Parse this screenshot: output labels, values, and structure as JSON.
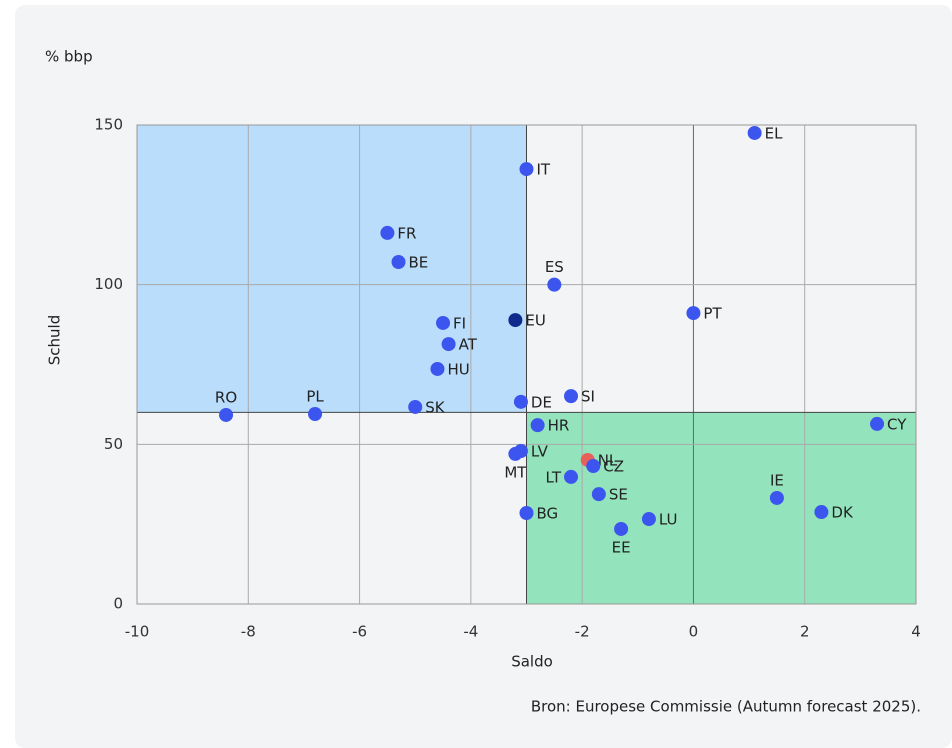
{
  "chart_data": {
    "type": "scatter",
    "title": "% bbp",
    "xlabel": "Saldo",
    "ylabel": "Schuld",
    "source": "Bron: Europese Commissie (Autumn forecast 2025).",
    "labels": [
      "EL",
      "IT",
      "FR",
      "BE",
      "ES",
      "PT",
      "EU",
      "FI",
      "AT",
      "HU",
      "SI",
      "DE",
      "SK",
      "RO",
      "PL",
      "HR",
      "CY",
      "LV",
      "MT",
      "NL",
      "CZ",
      "LT",
      "SE",
      "IE",
      "DK",
      "BG",
      "LU",
      "EE"
    ],
    "x": [
      1.1,
      -3.0,
      -5.5,
      -5.3,
      -2.5,
      0,
      -3.2,
      -4.5,
      -4.4,
      -4.6,
      -2.2,
      -3.1,
      -5.0,
      -8.4,
      -6.8,
      -2.8,
      3.3,
      -3.1,
      -3.2,
      -1.9,
      -1.8,
      -2.2,
      -1.7,
      1.5,
      2.3,
      -3.0,
      -0.8,
      -1.3
    ],
    "values": [
      147.5,
      136.2,
      116.2,
      107.1,
      100,
      91.1,
      88.9,
      88,
      81.4,
      73.6,
      65.1,
      63.3,
      61.7,
      59.2,
      59.5,
      56,
      56.4,
      47.9,
      47,
      45.1,
      43.2,
      39.8,
      34.4,
      33.2,
      28.8,
      28.5,
      26.6,
      23.5
    ],
    "colors": [
      "#3b55ee",
      "#3b55ee",
      "#3b55ee",
      "#3b55ee",
      "#3b55ee",
      "#3b55ee",
      "#0d2a8c",
      "#3b55ee",
      "#3b55ee",
      "#3b55ee",
      "#3b55ee",
      "#3b55ee",
      "#3b55ee",
      "#3b55ee",
      "#3b55ee",
      "#3b55ee",
      "#3b55ee",
      "#3b55ee",
      "#3b55ee",
      "#e8605a",
      "#3b55ee",
      "#3b55ee",
      "#3b55ee",
      "#3b55ee",
      "#3b55ee",
      "#3b55ee",
      "#3b55ee",
      "#3b55ee"
    ],
    "xlim": [
      -10,
      4
    ],
    "ylim": [
      0,
      150
    ],
    "xticks": [
      -10,
      -8,
      -6,
      -4,
      -2,
      0,
      2,
      4
    ],
    "yticks": [
      0,
      50,
      100,
      150
    ],
    "thresholds": {
      "x": -3,
      "y": 60
    },
    "grid": true
  }
}
